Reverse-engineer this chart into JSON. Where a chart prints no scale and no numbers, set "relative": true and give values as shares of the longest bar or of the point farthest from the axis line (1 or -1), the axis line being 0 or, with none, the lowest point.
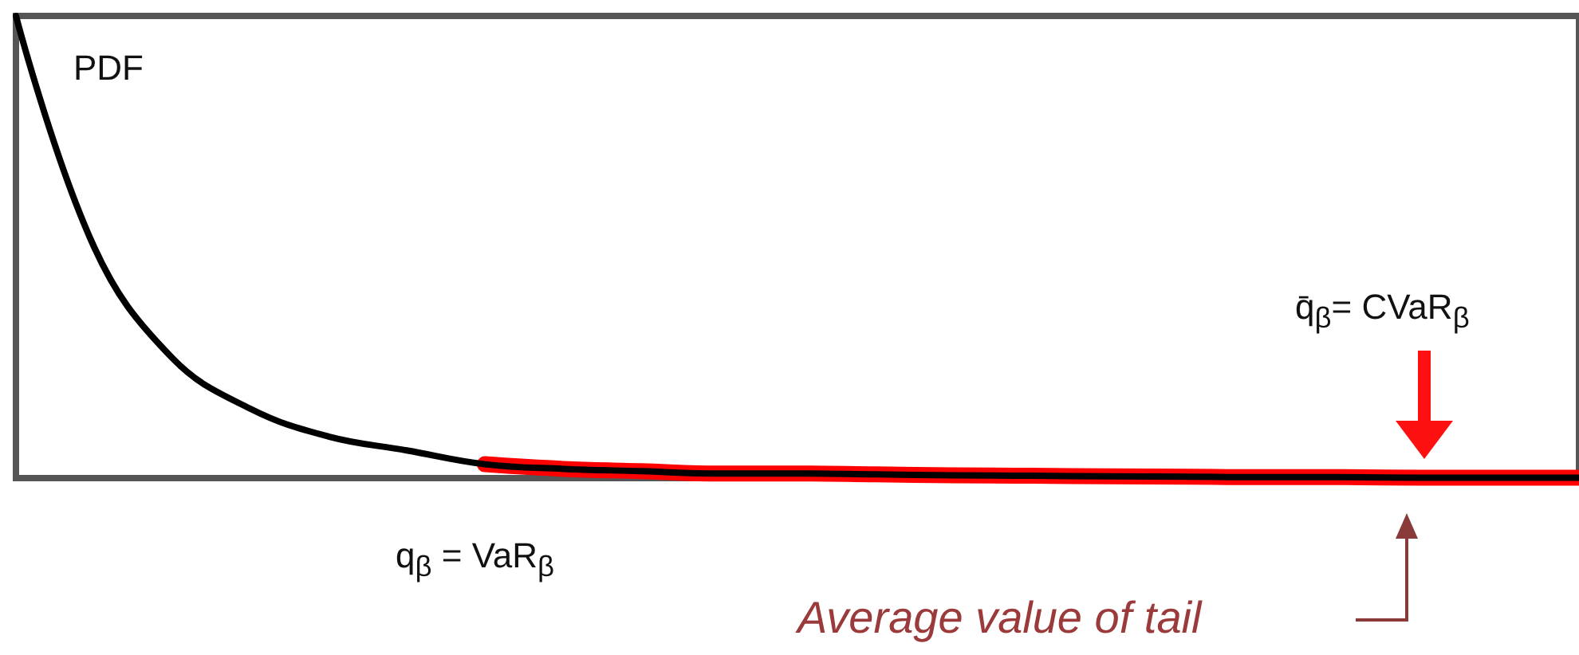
{
  "chart_data": {
    "type": "line",
    "relative": true,
    "marker": "none",
    "categories": [
      null,
      null,
      null,
      null,
      null,
      null,
      null,
      null,
      null,
      null,
      null,
      null,
      null,
      null,
      null,
      null,
      null,
      null,
      null,
      null,
      null
    ],
    "series": [
      {
        "color": "#000000",
        "values": [
          1,
          0.5,
          0.26,
          0.15,
          0.09,
          0.06,
          0.03,
          0.02,
          0.015,
          0.01,
          0.01,
          0.008,
          0.006,
          0.005,
          0.004,
          0.003,
          0.002,
          0.002,
          0.001,
          0.001,
          0.001
        ]
      },
      {
        "color": "#ff0000",
        "values": [
          null,
          null,
          null,
          null,
          null,
          null,
          0.03,
          0.02,
          0.015,
          0.01,
          0.01,
          0.008,
          0.006,
          0.005,
          0.004,
          0.003,
          0.002,
          0.002,
          0.001,
          0.001,
          0.001
        ]
      }
    ],
    "annotations": [
      "PDF",
      "q$_{β}$ = VaR$_{β}$",
      "q̄$_{β}$= CVaR$_{β}$",
      "Average value of tail"
    ]
  }
}
